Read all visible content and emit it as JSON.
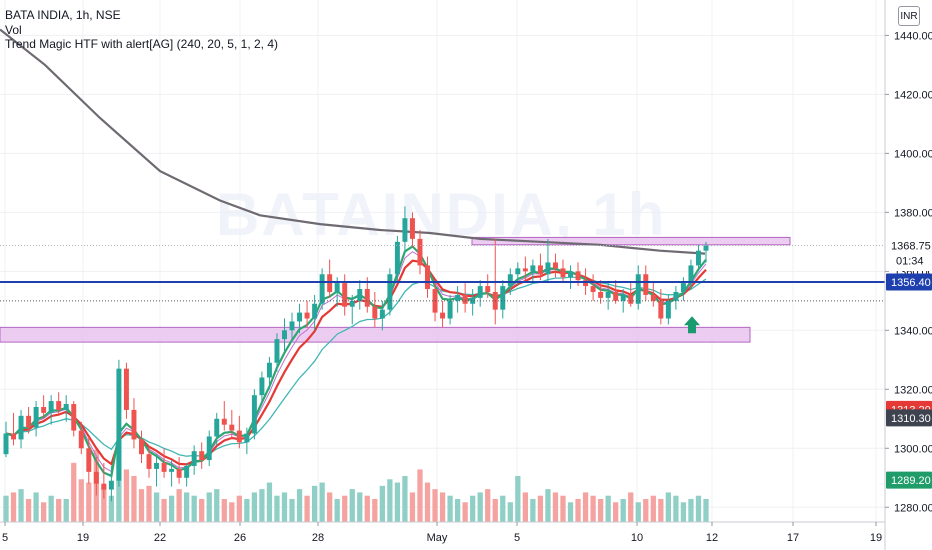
{
  "watermark": "BATAINDIA, 1h",
  "legend": {
    "title": "BATA INDIA, 1h, NSE",
    "vol": "Vol",
    "indicator": "Trend Magic HTF with alert[AG] (240, 20, 5, 1, 2, 4)"
  },
  "currency_button": "INR",
  "colors": {
    "up": "#26a69a",
    "down": "#ef5350",
    "vol_up": "#8fcfc6",
    "vol_down": "#f4a3a0",
    "hline": "#1e3fae",
    "zone_fill": "#e9c5ef",
    "zone_border": "#a64db8",
    "ma_long": "#6f6a72",
    "ma_red": "#e53935",
    "ma_green": "#2ea76f",
    "ma_teal": "#41b7b4",
    "ma_purple": "#c06fd1",
    "arrow": "#1a9a6f"
  },
  "chart_data": {
    "type": "candlestick",
    "title": "BATA INDIA, 1h, NSE",
    "y_axis": {
      "min": 1275,
      "max": 1452,
      "ticks": [
        1280,
        1300,
        1320,
        1340,
        1360,
        1380,
        1400,
        1420,
        1440
      ]
    },
    "x_axis": {
      "ticks": [
        "5",
        "19",
        "22",
        "26",
        "28",
        "May",
        "5",
        "10",
        "12",
        "17",
        "19"
      ]
    },
    "price_labels": [
      {
        "value": 1368.75,
        "text": "1368.75",
        "sub": "01:34",
        "kind": "last"
      },
      {
        "value": 1356.4,
        "text": "1356.40",
        "kind": "hline"
      },
      {
        "value": 1313.2,
        "text": "1313.20",
        "kind": "red"
      },
      {
        "value": 1310.3,
        "text": "1310.30",
        "kind": "dark"
      },
      {
        "value": 1289.2,
        "text": "1289.20",
        "kind": "green"
      }
    ],
    "horizontal_line": 1356.4,
    "zones": [
      {
        "top": 1371.5,
        "bottom": 1369
      },
      {
        "top": 1341,
        "bottom": 1336
      }
    ],
    "candles": [
      {
        "o": 1298,
        "h": 1309,
        "l": 1297,
        "c": 1305
      },
      {
        "o": 1305,
        "h": 1312,
        "l": 1301,
        "c": 1303
      },
      {
        "o": 1303,
        "h": 1313,
        "l": 1300,
        "c": 1311
      },
      {
        "o": 1311,
        "h": 1314,
        "l": 1305,
        "c": 1307
      },
      {
        "o": 1307,
        "h": 1316,
        "l": 1304,
        "c": 1314
      },
      {
        "o": 1314,
        "h": 1318,
        "l": 1310,
        "c": 1312
      },
      {
        "o": 1312,
        "h": 1318,
        "l": 1308,
        "c": 1316
      },
      {
        "o": 1316,
        "h": 1319,
        "l": 1311,
        "c": 1313
      },
      {
        "o": 1313,
        "h": 1318,
        "l": 1309,
        "c": 1315
      },
      {
        "o": 1315,
        "h": 1316,
        "l": 1304,
        "c": 1306
      },
      {
        "o": 1306,
        "h": 1309,
        "l": 1298,
        "c": 1300
      },
      {
        "o": 1300,
        "h": 1304,
        "l": 1288,
        "c": 1292
      },
      {
        "o": 1292,
        "h": 1297,
        "l": 1284,
        "c": 1288
      },
      {
        "o": 1288,
        "h": 1295,
        "l": 1283,
        "c": 1286
      },
      {
        "o": 1286,
        "h": 1294,
        "l": 1282,
        "c": 1289
      },
      {
        "o": 1289,
        "h": 1330,
        "l": 1287,
        "c": 1327
      },
      {
        "o": 1327,
        "h": 1329,
        "l": 1310,
        "c": 1313
      },
      {
        "o": 1313,
        "h": 1317,
        "l": 1300,
        "c": 1303
      },
      {
        "o": 1303,
        "h": 1306,
        "l": 1295,
        "c": 1298
      },
      {
        "o": 1298,
        "h": 1301,
        "l": 1290,
        "c": 1293
      },
      {
        "o": 1293,
        "h": 1298,
        "l": 1287,
        "c": 1295
      },
      {
        "o": 1295,
        "h": 1300,
        "l": 1290,
        "c": 1292
      },
      {
        "o": 1292,
        "h": 1296,
        "l": 1287,
        "c": 1293
      },
      {
        "o": 1293,
        "h": 1297,
        "l": 1288,
        "c": 1290
      },
      {
        "o": 1290,
        "h": 1295,
        "l": 1287,
        "c": 1294
      },
      {
        "o": 1294,
        "h": 1301,
        "l": 1291,
        "c": 1299
      },
      {
        "o": 1299,
        "h": 1302,
        "l": 1293,
        "c": 1296
      },
      {
        "o": 1296,
        "h": 1306,
        "l": 1294,
        "c": 1304
      },
      {
        "o": 1304,
        "h": 1312,
        "l": 1301,
        "c": 1310
      },
      {
        "o": 1310,
        "h": 1316,
        "l": 1306,
        "c": 1308
      },
      {
        "o": 1308,
        "h": 1313,
        "l": 1303,
        "c": 1306
      },
      {
        "o": 1306,
        "h": 1311,
        "l": 1300,
        "c": 1302
      },
      {
        "o": 1302,
        "h": 1307,
        "l": 1298,
        "c": 1305
      },
      {
        "o": 1305,
        "h": 1320,
        "l": 1303,
        "c": 1318
      },
      {
        "o": 1318,
        "h": 1326,
        "l": 1315,
        "c": 1324
      },
      {
        "o": 1324,
        "h": 1331,
        "l": 1320,
        "c": 1329
      },
      {
        "o": 1329,
        "h": 1339,
        "l": 1326,
        "c": 1337
      },
      {
        "o": 1337,
        "h": 1344,
        "l": 1333,
        "c": 1340
      },
      {
        "o": 1340,
        "h": 1346,
        "l": 1336,
        "c": 1343
      },
      {
        "o": 1343,
        "h": 1349,
        "l": 1339,
        "c": 1346
      },
      {
        "o": 1346,
        "h": 1350,
        "l": 1341,
        "c": 1344
      },
      {
        "o": 1344,
        "h": 1352,
        "l": 1340,
        "c": 1349
      },
      {
        "o": 1349,
        "h": 1361,
        "l": 1347,
        "c": 1359
      },
      {
        "o": 1359,
        "h": 1364,
        "l": 1351,
        "c": 1353
      },
      {
        "o": 1353,
        "h": 1358,
        "l": 1348,
        "c": 1356
      },
      {
        "o": 1356,
        "h": 1359,
        "l": 1345,
        "c": 1348
      },
      {
        "o": 1348,
        "h": 1352,
        "l": 1342,
        "c": 1350
      },
      {
        "o": 1350,
        "h": 1357,
        "l": 1347,
        "c": 1354
      },
      {
        "o": 1354,
        "h": 1358,
        "l": 1346,
        "c": 1348
      },
      {
        "o": 1348,
        "h": 1353,
        "l": 1341,
        "c": 1344
      },
      {
        "o": 1344,
        "h": 1350,
        "l": 1340,
        "c": 1347
      },
      {
        "o": 1347,
        "h": 1361,
        "l": 1345,
        "c": 1359
      },
      {
        "o": 1359,
        "h": 1372,
        "l": 1356,
        "c": 1370
      },
      {
        "o": 1370,
        "h": 1382,
        "l": 1366,
        "c": 1378
      },
      {
        "o": 1378,
        "h": 1380,
        "l": 1368,
        "c": 1371
      },
      {
        "o": 1371,
        "h": 1374,
        "l": 1359,
        "c": 1362
      },
      {
        "o": 1362,
        "h": 1365,
        "l": 1351,
        "c": 1354
      },
      {
        "o": 1354,
        "h": 1357,
        "l": 1343,
        "c": 1346
      },
      {
        "o": 1346,
        "h": 1350,
        "l": 1341,
        "c": 1344
      },
      {
        "o": 1344,
        "h": 1352,
        "l": 1342,
        "c": 1350
      },
      {
        "o": 1350,
        "h": 1355,
        "l": 1346,
        "c": 1352
      },
      {
        "o": 1352,
        "h": 1356,
        "l": 1346,
        "c": 1349
      },
      {
        "o": 1349,
        "h": 1354,
        "l": 1345,
        "c": 1351
      },
      {
        "o": 1351,
        "h": 1357,
        "l": 1348,
        "c": 1355
      },
      {
        "o": 1355,
        "h": 1359,
        "l": 1351,
        "c": 1353
      },
      {
        "o": 1353,
        "h": 1371,
        "l": 1342,
        "c": 1347
      },
      {
        "o": 1347,
        "h": 1357,
        "l": 1344,
        "c": 1355
      },
      {
        "o": 1355,
        "h": 1361,
        "l": 1352,
        "c": 1359
      },
      {
        "o": 1359,
        "h": 1363,
        "l": 1355,
        "c": 1361
      },
      {
        "o": 1361,
        "h": 1365,
        "l": 1357,
        "c": 1360
      },
      {
        "o": 1360,
        "h": 1364,
        "l": 1356,
        "c": 1362
      },
      {
        "o": 1362,
        "h": 1366,
        "l": 1357,
        "c": 1359
      },
      {
        "o": 1359,
        "h": 1371,
        "l": 1356,
        "c": 1363
      },
      {
        "o": 1363,
        "h": 1366,
        "l": 1358,
        "c": 1361
      },
      {
        "o": 1361,
        "h": 1364,
        "l": 1356,
        "c": 1358
      },
      {
        "o": 1358,
        "h": 1362,
        "l": 1354,
        "c": 1360
      },
      {
        "o": 1360,
        "h": 1363,
        "l": 1355,
        "c": 1357
      },
      {
        "o": 1357,
        "h": 1361,
        "l": 1352,
        "c": 1355
      },
      {
        "o": 1355,
        "h": 1359,
        "l": 1350,
        "c": 1353
      },
      {
        "o": 1353,
        "h": 1357,
        "l": 1349,
        "c": 1351
      },
      {
        "o": 1351,
        "h": 1356,
        "l": 1347,
        "c": 1353
      },
      {
        "o": 1353,
        "h": 1357,
        "l": 1349,
        "c": 1350
      },
      {
        "o": 1350,
        "h": 1354,
        "l": 1346,
        "c": 1352
      },
      {
        "o": 1352,
        "h": 1356,
        "l": 1348,
        "c": 1349
      },
      {
        "o": 1349,
        "h": 1362,
        "l": 1347,
        "c": 1359
      },
      {
        "o": 1359,
        "h": 1362,
        "l": 1350,
        "c": 1352
      },
      {
        "o": 1352,
        "h": 1356,
        "l": 1348,
        "c": 1350
      },
      {
        "o": 1350,
        "h": 1354,
        "l": 1342,
        "c": 1344
      },
      {
        "o": 1344,
        "h": 1352,
        "l": 1342,
        "c": 1350
      },
      {
        "o": 1350,
        "h": 1355,
        "l": 1347,
        "c": 1353
      },
      {
        "o": 1353,
        "h": 1358,
        "l": 1350,
        "c": 1356
      },
      {
        "o": 1356,
        "h": 1364,
        "l": 1354,
        "c": 1362
      },
      {
        "o": 1362,
        "h": 1369,
        "l": 1360,
        "c": 1367
      },
      {
        "o": 1367,
        "h": 1370,
        "l": 1363,
        "c": 1368.75
      }
    ],
    "volume": [
      8,
      9,
      10,
      7,
      9,
      6,
      8,
      7,
      7,
      18,
      13,
      12,
      22,
      11,
      8,
      25,
      16,
      14,
      10,
      11,
      9,
      7,
      8,
      10,
      9,
      8,
      7,
      9,
      10,
      7,
      6,
      8,
      7,
      9,
      10,
      12,
      8,
      9,
      7,
      10,
      8,
      11,
      12,
      9,
      7,
      8,
      10,
      9,
      8,
      7,
      11,
      13,
      12,
      14,
      9,
      16,
      12,
      10,
      9,
      8,
      7,
      6,
      8,
      9,
      10,
      7,
      8,
      6,
      14,
      9,
      7,
      8,
      10,
      9,
      8,
      6,
      7,
      9,
      8,
      7,
      8,
      6,
      7,
      9,
      6,
      7,
      8,
      7,
      9,
      8,
      6,
      7,
      8,
      7
    ],
    "volume_max": 35,
    "ma_long": [
      [
        0,
        1442
      ],
      [
        45,
        1430
      ],
      [
        100,
        1412
      ],
      [
        160,
        1394
      ],
      [
        220,
        1384
      ],
      [
        260,
        1379
      ],
      [
        320,
        1376
      ],
      [
        380,
        1374
      ],
      [
        430,
        1373
      ],
      [
        480,
        1371
      ],
      [
        540,
        1370
      ],
      [
        600,
        1369
      ],
      [
        660,
        1367
      ],
      [
        705,
        1366
      ]
    ]
  }
}
